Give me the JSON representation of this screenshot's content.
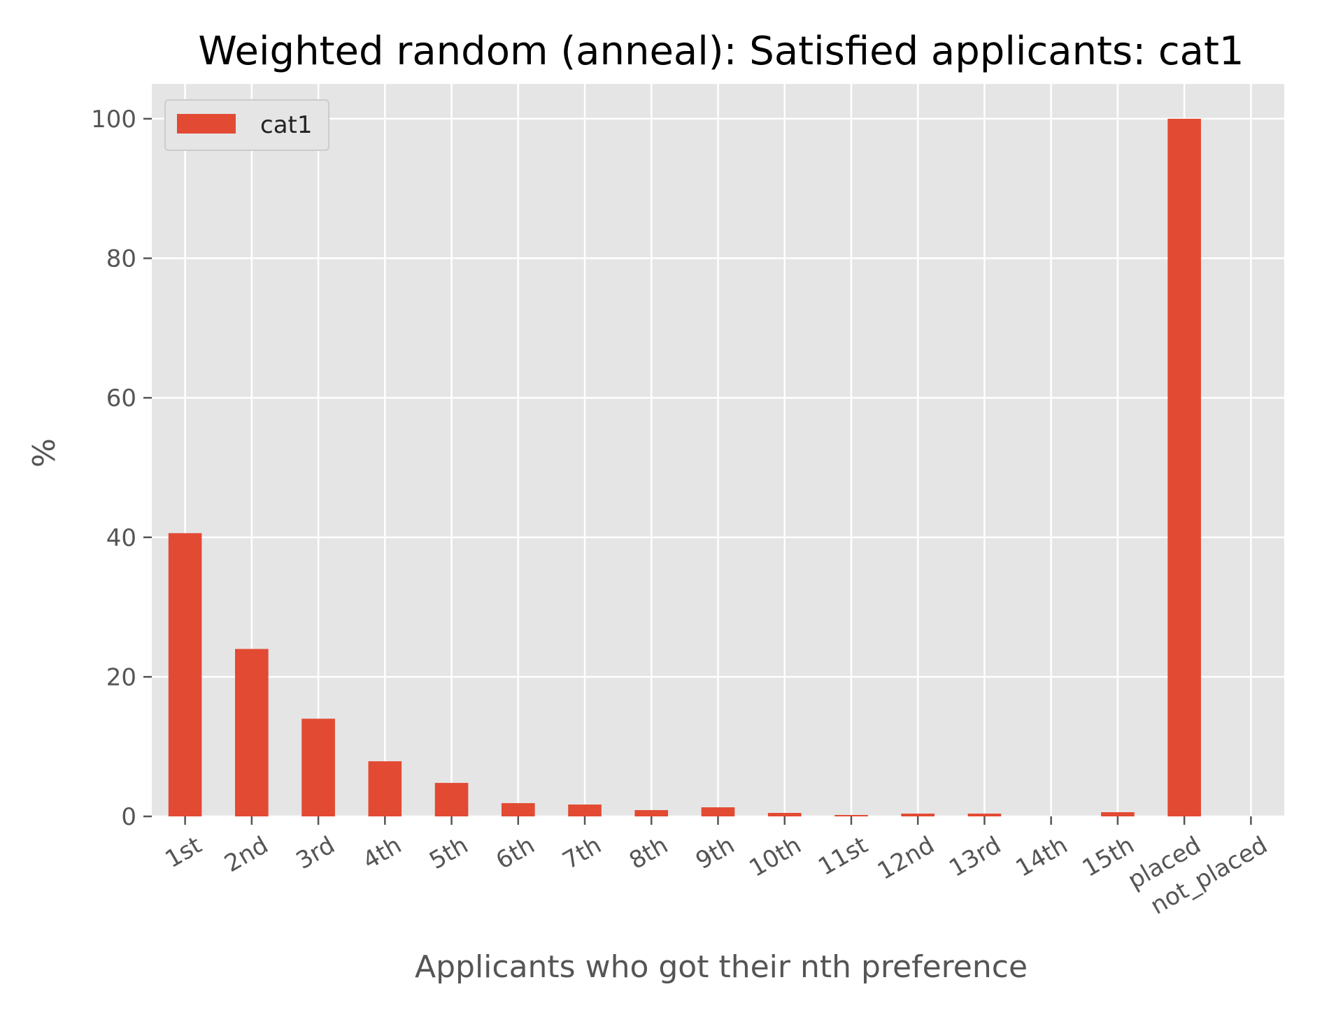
{
  "chart_data": {
    "type": "bar",
    "title": "Weighted random (anneal): Satisfied applicants: cat1",
    "xlabel": "Applicants who got their nth preference",
    "ylabel": "%",
    "categories": [
      "1st",
      "2nd",
      "3rd",
      "4th",
      "5th",
      "6th",
      "7th",
      "8th",
      "9th",
      "10th",
      "11st",
      "12nd",
      "13rd",
      "14th",
      "15th",
      "placed",
      "not_placed"
    ],
    "series": [
      {
        "name": "cat1",
        "color": "#E24A33",
        "values": [
          40.6,
          24.0,
          14.0,
          7.9,
          4.8,
          1.9,
          1.7,
          0.9,
          1.3,
          0.5,
          0.2,
          0.4,
          0.4,
          0.0,
          0.6,
          100.0,
          0.0
        ]
      }
    ],
    "ylim": [
      0,
      105
    ],
    "yticks": [
      0,
      20,
      40,
      60,
      80,
      100
    ],
    "grid": true,
    "legend_position": "top-left",
    "style": {
      "plot_background": "#E5E5E5",
      "grid_color": "#FFFFFF"
    }
  }
}
